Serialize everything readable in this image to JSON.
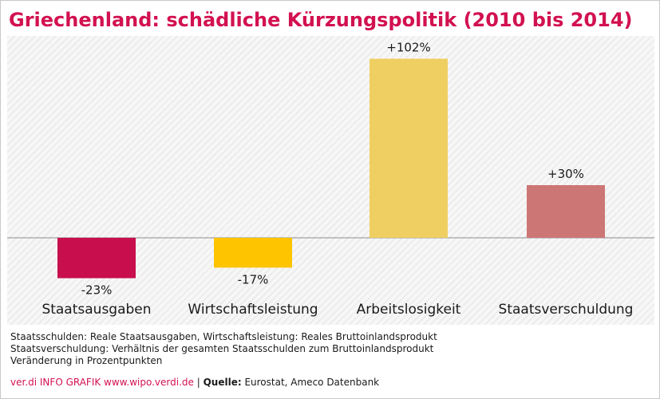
{
  "title": "Griechenland: schädliche Kürzungspolitik (2010 bis 2014)",
  "chart_data": {
    "type": "bar",
    "categories": [
      "Staatsausgaben",
      "Wirtschaftsleistung",
      "Arbeitslosigkeit",
      "Staatsverschuldung"
    ],
    "values": [
      -23,
      -17,
      102,
      30
    ],
    "value_labels": [
      "-23%",
      "-17%",
      "+102%",
      "+30%"
    ],
    "colors": [
      "#c80e4c",
      "#fec400",
      "#f0cf62",
      "#cd7676"
    ],
    "ylim": [
      -40,
      115
    ],
    "grid": false
  },
  "notes": [
    "Staatsschulden: Reale Staatsausgaben, Wirtschaftsleistung: Reales Bruttoinlandsprodukt",
    "Staatsverschuldung: Verhältnis der gesamten Staatsschulden zum Bruttoinlandsprodukt",
    "Veränderung in Prozentpunkten"
  ],
  "footer": {
    "brand": "ver.di INFO GRAFIK www.wipo.verdi.de",
    "separator": " | ",
    "source_label": "Quelle:",
    "source": " Eurostat, Ameco Datenbank"
  }
}
